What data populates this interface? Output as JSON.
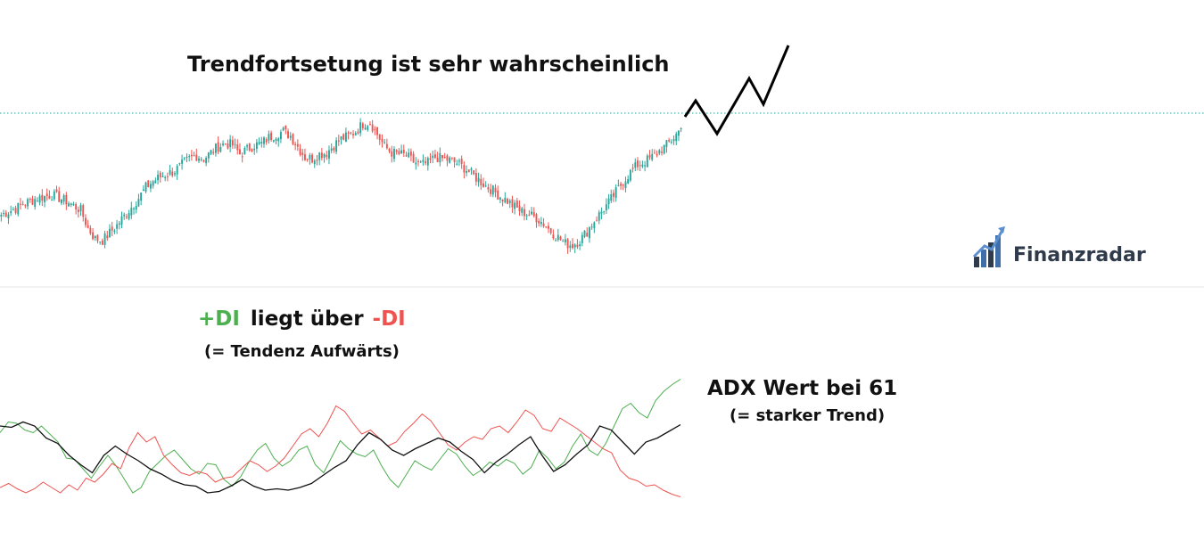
{
  "annotations": {
    "trend_note": "Trendfortsetung ist sehr wahrscheinlich",
    "di_plus": "+DI",
    "di_text": "liegt über",
    "di_minus": "-DI",
    "di_note": "(= Tendenz Aufwärts)",
    "adx_title": "ADX Wert bei 61",
    "adx_note": "(= starker Trend)"
  },
  "logo": {
    "text": "Finanzradar",
    "icon": "bar-chart-arrow-icon"
  },
  "colors": {
    "up": "#26a69a",
    "down": "#ef5350",
    "di_plus": "#4caf50",
    "di_minus": "#ef5350",
    "adx": "#111111",
    "projection": "#000000",
    "reference_line": "#26a69a"
  },
  "chart_data": [
    {
      "type": "candlestick",
      "title": "",
      "ylim": [
        0,
        100
      ],
      "reference_level": 100,
      "close_series": [
        33,
        35,
        37,
        40,
        42,
        44,
        45,
        46,
        44,
        42,
        39,
        36,
        24,
        17,
        16,
        21,
        26,
        32,
        38,
        44,
        51,
        55,
        58,
        60,
        62,
        66,
        70,
        72,
        70,
        74,
        78,
        80,
        79,
        73,
        76,
        79,
        80,
        84,
        86,
        88,
        85,
        78,
        71,
        70,
        73,
        74,
        79,
        83,
        85,
        88,
        93,
        94,
        86,
        78,
        74,
        73,
        72,
        68,
        66,
        67,
        71,
        70,
        69,
        67,
        64,
        60,
        56,
        52,
        49,
        45,
        42,
        38,
        35,
        33,
        31,
        27,
        22,
        18,
        14,
        13,
        16,
        22,
        29,
        35,
        41,
        48,
        55,
        61,
        66,
        68,
        71,
        75,
        79,
        84,
        90
      ],
      "projection": [
        90,
        108,
        82,
        112,
        132
      ]
    },
    {
      "type": "line",
      "title": "",
      "ylim": [
        0,
        100
      ],
      "series": [
        {
          "name": "+DI",
          "color": "#4caf50",
          "values": [
            55,
            63,
            62,
            57,
            55,
            60,
            54,
            48,
            36,
            35,
            28,
            21,
            30,
            38,
            30,
            20,
            10,
            14,
            26,
            32,
            38,
            42,
            35,
            28,
            24,
            32,
            31,
            20,
            15,
            22,
            33,
            42,
            47,
            36,
            30,
            34,
            42,
            45,
            31,
            25,
            37,
            49,
            43,
            39,
            37,
            42,
            30,
            20,
            14,
            24,
            34,
            30,
            27,
            35,
            43,
            39,
            30,
            23,
            27,
            33,
            30,
            35,
            32,
            24,
            29,
            42,
            36,
            28,
            33,
            45,
            54,
            42,
            38,
            47,
            60,
            73,
            77,
            70,
            66,
            79,
            86,
            91,
            95
          ]
        },
        {
          "name": "-DI",
          "color": "#ef5350",
          "values": [
            14,
            17,
            13,
            10,
            13,
            18,
            14,
            10,
            16,
            12,
            21,
            18,
            24,
            32,
            28,
            44,
            55,
            48,
            52,
            38,
            31,
            25,
            23,
            26,
            24,
            18,
            21,
            22,
            28,
            34,
            31,
            26,
            30,
            36,
            45,
            54,
            58,
            52,
            62,
            75,
            71,
            62,
            54,
            57,
            51,
            45,
            48,
            56,
            62,
            69,
            64,
            55,
            46,
            42,
            48,
            52,
            50,
            58,
            60,
            55,
            63,
            72,
            68,
            58,
            56,
            66,
            62,
            58,
            53,
            48,
            43,
            40,
            27,
            21,
            19,
            15,
            16,
            12,
            9,
            7
          ]
        },
        {
          "name": "ADX",
          "color": "#111111",
          "values": [
            60,
            59,
            63,
            60,
            51,
            47,
            38,
            31,
            25,
            38,
            45,
            39,
            34,
            28,
            24,
            19,
            16,
            15,
            10,
            11,
            15,
            20,
            15,
            12,
            13,
            12,
            14,
            17,
            23,
            29,
            34,
            46,
            55,
            50,
            42,
            38,
            43,
            47,
            51,
            48,
            41,
            35,
            25,
            33,
            39,
            46,
            52,
            38,
            26,
            31,
            39,
            46,
            60,
            57,
            48,
            39,
            48,
            51,
            56,
            61
          ]
        }
      ]
    }
  ]
}
